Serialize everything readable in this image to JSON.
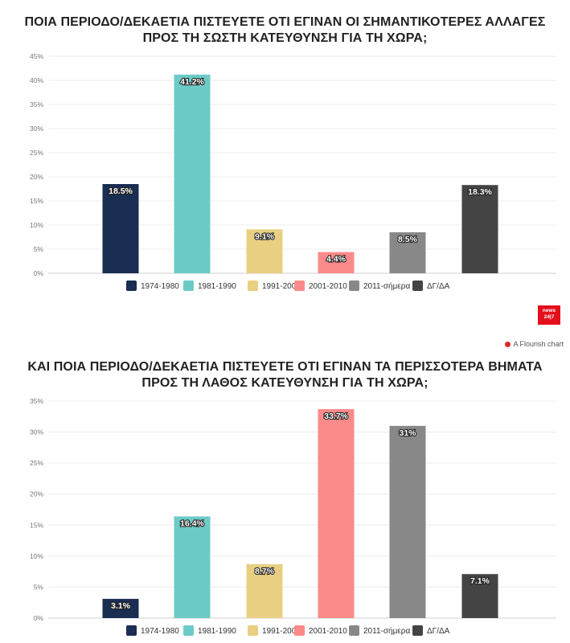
{
  "charts": [
    {
      "title": "ΠΟΙΑ ΠΕΡΙΟΔΟ/ΔΕΚΑΕΤΙΑ ΠΙΣΤΕΥΕΤΕ ΟΤΙ ΕΓΙΝΑΝ ΟΙ ΣΗΜΑΝΤΙΚΟΤΕΡΕΣ ΑΛΛΑΓΕΣ ΠΡΟΣ ΤΗ ΣΩΣΤΗ ΚΑΤΕΥΘΥΝΣΗ ΓΙΑ ΤΗ ΧΩΡΑ;"
    },
    {
      "title": "ΚΑΙ ΠΟΙΑ ΠΕΡΙΟΔΟ/ΔΕΚΑΕΤΙΑ ΠΙΣΤΕΥΕΤΕ ΟΤΙ ΕΓΙΝΑΝ ΤΑ ΠΕΡΙΣΣΟΤΕΡΑ ΒΗΜΑΤΑ ΠΡΟΣ ΤΗ ΛΑΘΟΣ ΚΑΤΕΥΘΥΝΣΗ ΓΙΑ ΤΗ ΧΩΡΑ;"
    }
  ],
  "chart_data": [
    {
      "type": "bar",
      "title": "ΠΟΙΑ ΠΕΡΙΟΔΟ/ΔΕΚΑΕΤΙΑ ΠΙΣΤΕΥΕΤΕ ΟΤΙ ΕΓΙΝΑΝ ΟΙ ΣΗΜΑΝΤΙΚΟΤΕΡΕΣ ΑΛΛΑΓΕΣ ΠΡΟΣ ΤΗ ΣΩΣΤΗ ΚΑΤΕΥΘΥΝΣΗ ΓΙΑ ΤΗ ΧΩΡΑ;",
      "categories": [
        "1974-1980",
        "1981-1990",
        "1991-2000",
        "2001-2010",
        "2011-σήμερα",
        "ΔΓ/ΔΑ"
      ],
      "values": [
        18.5,
        41.2,
        9.1,
        4.4,
        8.5,
        18.3
      ],
      "value_labels": [
        "18.5%",
        "41.2%",
        "9.1%",
        "4.4%",
        "8.5%",
        "18.3%"
      ],
      "colors": [
        "#1a2d52",
        "#6ccbc7",
        "#e8cf82",
        "#fd8a8a",
        "#888888",
        "#444444"
      ],
      "ylim": [
        0,
        45
      ],
      "yticks": [
        0,
        5,
        10,
        15,
        20,
        25,
        30,
        35,
        40,
        45
      ],
      "ytick_labels": [
        "0%",
        "5%",
        "10%",
        "15%",
        "20%",
        "25%",
        "30%",
        "35%",
        "40%",
        "45%"
      ],
      "grid": true,
      "legend": "bottom"
    },
    {
      "type": "bar",
      "title": "ΚΑΙ ΠΟΙΑ ΠΕΡΙΟΔΟ/ΔΕΚΑΕΤΙΑ ΠΙΣΤΕΥΕΤΕ ΟΤΙ ΕΓΙΝΑΝ ΤΑ ΠΕΡΙΣΣΟΤΕΡΑ ΒΗΜΑΤΑ ΠΡΟΣ ΤΗ ΛΑΘΟΣ ΚΑΤΕΥΘΥΝΣΗ ΓΙΑ ΤΗ ΧΩΡΑ;",
      "categories": [
        "1974-1980",
        "1981-1990",
        "1991-2000",
        "2001-2010",
        "2011-σήμερα",
        "ΔΓ/ΔΑ"
      ],
      "values": [
        3.1,
        16.4,
        8.7,
        33.7,
        31,
        7.1
      ],
      "value_labels": [
        "3.1%",
        "16.4%",
        "8.7%",
        "33.7%",
        "31%",
        "7.1%"
      ],
      "colors": [
        "#1a2d52",
        "#6ccbc7",
        "#e8cf82",
        "#fd8a8a",
        "#888888",
        "#444444"
      ],
      "ylim": [
        0,
        35
      ],
      "yticks": [
        0,
        5,
        10,
        15,
        20,
        25,
        30,
        35
      ],
      "ytick_labels": [
        "0%",
        "5%",
        "10%",
        "15%",
        "20%",
        "25%",
        "30%",
        "35%"
      ],
      "grid": true,
      "legend": "bottom"
    }
  ],
  "branding": {
    "logo_line1": "news",
    "logo_line2": "24|7",
    "credit": "A Flourish chart",
    "logo_color": "#e3101b"
  }
}
